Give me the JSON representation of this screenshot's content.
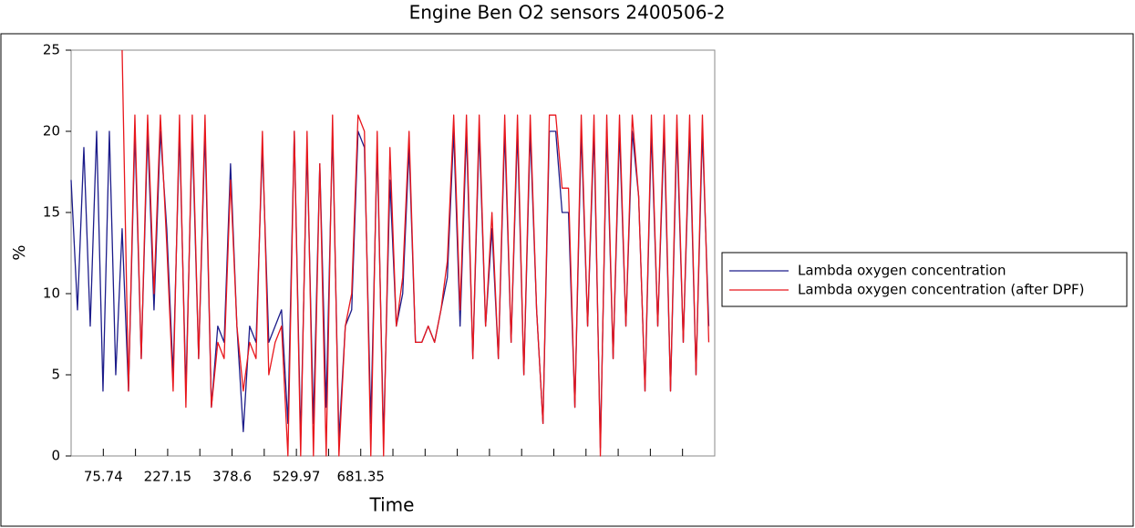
{
  "chart_data": {
    "type": "line",
    "title": "Engine Ben    O2 sensors 2400506-2",
    "x_label": "Time",
    "y_label": "%",
    "x": [
      0,
      15,
      30,
      45,
      60,
      75,
      90,
      105,
      120,
      135,
      150,
      165,
      180,
      195,
      210,
      225,
      240,
      255,
      270,
      285,
      300,
      315,
      330,
      345,
      360,
      375,
      390,
      405,
      420,
      435,
      450,
      465,
      480,
      495,
      510,
      525,
      540,
      555,
      570,
      585,
      600,
      615,
      630,
      645,
      660,
      675,
      690,
      705,
      720,
      735,
      750,
      765,
      780,
      795,
      810,
      825,
      840,
      855,
      870,
      885,
      900,
      915,
      930,
      945,
      960,
      975,
      990,
      1005,
      1020,
      1035,
      1050,
      1065,
      1080,
      1095,
      1110,
      1125,
      1140,
      1155,
      1170,
      1185,
      1200,
      1215,
      1230,
      1245,
      1260,
      1275,
      1290,
      1305,
      1320,
      1335,
      1350,
      1365,
      1380,
      1395,
      1410,
      1425,
      1440,
      1455,
      1470,
      1485,
      1500
    ],
    "series": [
      {
        "name": "Lambda oxygen concentration",
        "color": "#1c1c8a",
        "values": [
          17,
          9,
          19,
          8,
          20,
          4,
          20,
          5,
          14,
          4,
          20,
          6,
          20,
          9,
          20,
          14,
          5,
          20,
          4,
          20,
          6,
          20,
          3,
          8,
          7,
          18,
          8,
          1.5,
          8,
          7,
          19,
          7,
          8,
          9,
          2,
          20,
          1,
          19,
          2,
          18,
          3,
          20,
          1,
          8,
          9,
          20,
          19,
          2,
          19,
          1,
          17,
          8,
          10,
          19,
          7,
          7,
          8,
          7,
          9,
          11,
          20,
          8,
          20,
          6,
          20,
          8,
          14,
          6,
          20,
          7,
          20,
          5,
          20,
          9,
          2,
          20,
          20,
          15,
          15,
          3,
          20,
          8,
          20,
          0.5,
          20,
          6,
          20,
          8,
          20,
          16,
          4,
          20,
          8,
          20,
          4,
          20,
          7,
          20,
          5,
          20,
          8
        ]
      },
      {
        "name": "Lambda oxygen concentration (after DPF)",
        "color": "#e8161c",
        "values": [
          null,
          null,
          null,
          null,
          null,
          null,
          null,
          null,
          25,
          4,
          21,
          6,
          21,
          10,
          21,
          13,
          4,
          21,
          3,
          21,
          6,
          21,
          3,
          7,
          6,
          17,
          8,
          4,
          7,
          6,
          20,
          5,
          7,
          8,
          0,
          20,
          0,
          20,
          0,
          18,
          0,
          21,
          0,
          8,
          10,
          21,
          20,
          0,
          20,
          0,
          19,
          8,
          11,
          20,
          7,
          7,
          8,
          7,
          9,
          12,
          21,
          9,
          21,
          6,
          21,
          8,
          15,
          6,
          21,
          7,
          21,
          5,
          21,
          9,
          2,
          21,
          21,
          16.5,
          16.5,
          3,
          21,
          8,
          21,
          0,
          21,
          6,
          21,
          8,
          21,
          16,
          4,
          21,
          8,
          21,
          4,
          21,
          7,
          21,
          5,
          21,
          7
        ]
      }
    ],
    "xlim": [
      0,
      1514
    ],
    "ylim": [
      0,
      25
    ],
    "yticks": [
      0,
      5,
      10,
      15,
      20,
      25
    ],
    "xticks": [
      75.74,
      227.15,
      378.6,
      529.97,
      681.35
    ],
    "xminorticks": [
      151.44,
      302.87,
      454.28,
      605.66,
      757.04,
      832.73,
      908.42,
      984.11,
      1059.8,
      1135.49,
      1211.18,
      1286.87,
      1362.56,
      1438.25
    ],
    "legend": "right"
  }
}
